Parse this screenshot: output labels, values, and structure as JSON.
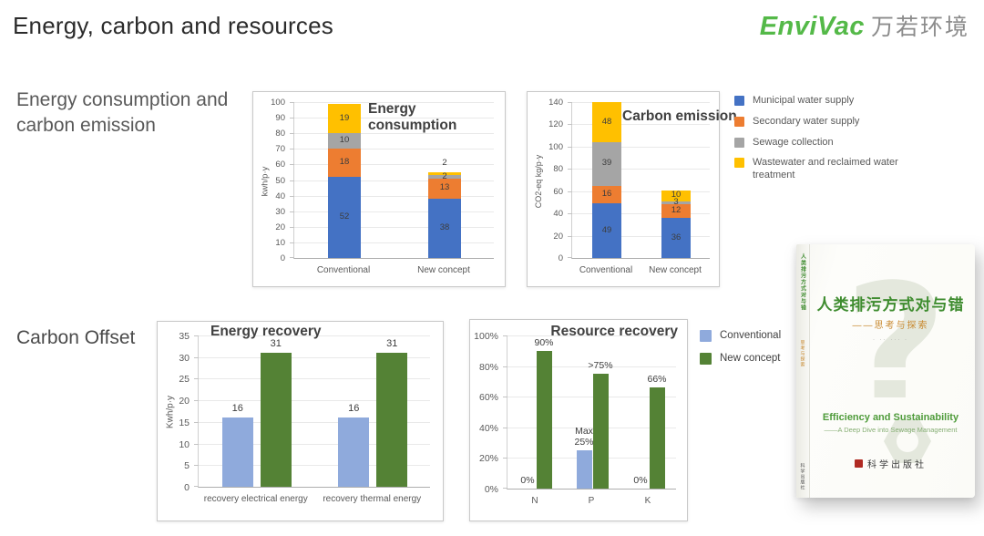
{
  "slide": {
    "title": "Energy, carbon and resources",
    "section_labels": {
      "top": "Energy consumption and carbon emission",
      "bottom": "Carbon Offset"
    }
  },
  "logo": {
    "brand": "EnviVac",
    "brand_cn": "万若环境"
  },
  "colors": {
    "blue": "#4472C4",
    "orange": "#ED7D31",
    "gray": "#A5A5A5",
    "yellow": "#FFC000",
    "light_blue": "#8FAADC",
    "green": "#548235"
  },
  "chart_data": [
    {
      "id": "energy-consumption",
      "type": "bar",
      "variant": "stacked",
      "title": "Energy consumption",
      "ylabel": "kwh/p·y",
      "ylim": [
        0,
        100
      ],
      "ytick_step": 10,
      "ytick_suffix": "",
      "grid": true,
      "categories": [
        "Conventional",
        "New concept"
      ],
      "series": [
        {
          "name": "Municipal water supply",
          "color_key": "blue",
          "values": [
            52,
            38
          ]
        },
        {
          "name": "Secondary water supply",
          "color_key": "orange",
          "values": [
            18,
            13
          ]
        },
        {
          "name": "Sewage collection",
          "color_key": "gray",
          "values": [
            10,
            2
          ]
        },
        {
          "name": "Wastewater and reclaimed water treatment",
          "color_key": "yellow",
          "values": [
            19,
            2
          ]
        }
      ]
    },
    {
      "id": "carbon-emission",
      "type": "bar",
      "variant": "stacked",
      "title": "Carbon emission",
      "ylabel": "CO2-eq kg/p·y",
      "ylim": [
        0,
        140
      ],
      "ytick_step": 20,
      "ytick_suffix": "",
      "grid": true,
      "categories": [
        "Conventional",
        "New concept"
      ],
      "series": [
        {
          "name": "Municipal water supply",
          "color_key": "blue",
          "values": [
            49,
            36
          ]
        },
        {
          "name": "Secondary water supply",
          "color_key": "orange",
          "values": [
            16,
            12
          ]
        },
        {
          "name": "Sewage collection",
          "color_key": "gray",
          "values": [
            39,
            3
          ]
        },
        {
          "name": "Wastewater and reclaimed water treatment",
          "color_key": "yellow",
          "values": [
            48,
            10
          ]
        }
      ]
    },
    {
      "id": "energy-recovery",
      "type": "bar",
      "variant": "grouped",
      "title": "Energy recovery",
      "ylabel": "Kwh/p·y",
      "ylim": [
        0,
        35
      ],
      "ytick_step": 5,
      "ytick_suffix": "",
      "grid": true,
      "categories": [
        "recovery electrical energy",
        "recovery thermal energy"
      ],
      "series": [
        {
          "name": "Conventional",
          "color_key": "light_blue",
          "values": [
            16,
            16
          ],
          "labels": [
            "16",
            "16"
          ]
        },
        {
          "name": "New concept",
          "color_key": "green",
          "values": [
            31,
            31
          ],
          "labels": [
            "31",
            "31"
          ]
        }
      ]
    },
    {
      "id": "resource-recovery",
      "type": "bar",
      "variant": "grouped",
      "title": "Resource recovery",
      "ylabel": "",
      "ylim": [
        0,
        100
      ],
      "ytick_step": 20,
      "ytick_suffix": "%",
      "grid": true,
      "categories": [
        "N",
        "P",
        "K"
      ],
      "series": [
        {
          "name": "Conventional",
          "color_key": "light_blue",
          "values": [
            0,
            25,
            0
          ],
          "labels": [
            "0%",
            "Max 25%",
            "0%"
          ]
        },
        {
          "name": "New concept",
          "color_key": "green",
          "values": [
            90,
            75,
            66
          ],
          "labels": [
            "90%",
            ">75%",
            "66%"
          ]
        }
      ]
    }
  ],
  "legend_water": {
    "items": [
      {
        "label": "Municipal water supply",
        "color_key": "blue"
      },
      {
        "label": "Secondary water supply",
        "color_key": "orange"
      },
      {
        "label": "Sewage collection",
        "color_key": "gray"
      },
      {
        "label": "Wastewater and reclaimed water treatment",
        "color_key": "yellow"
      }
    ]
  },
  "legend_concept": {
    "items": [
      {
        "label": "Conventional",
        "color_key": "light_blue"
      },
      {
        "label": "New concept",
        "color_key": "green"
      }
    ]
  },
  "book": {
    "title": "人类排污方式对与错",
    "subtitle": "——思考与探索",
    "authors": "· ··  ···  ·",
    "english_title": "Efficiency and Sustainability",
    "english_subtitle": "——A Deep Dive into Sewage Management",
    "publisher": "科学出版社",
    "watermark": "?",
    "spine_title": "人类排污方式对与错",
    "spine_subtitle": "思考与探索",
    "spine_publisher": "科学出版社"
  }
}
